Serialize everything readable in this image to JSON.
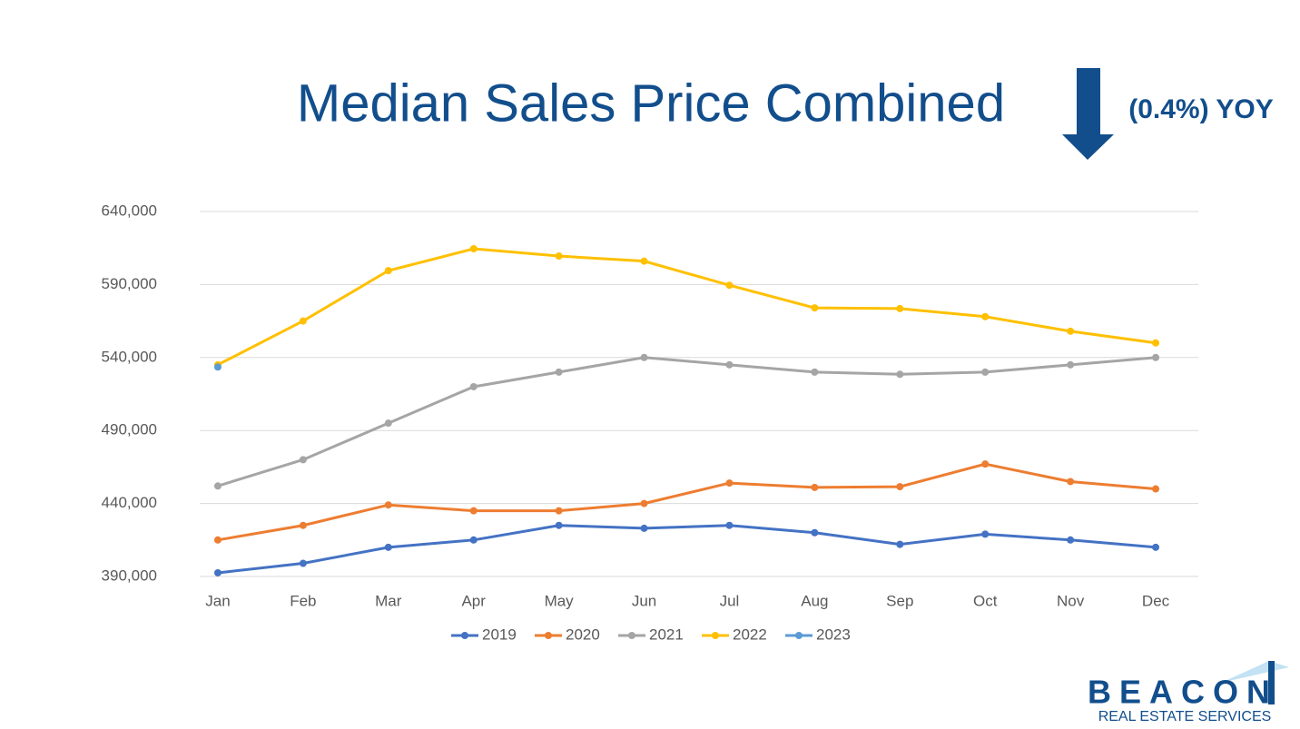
{
  "chart_data": {
    "type": "line",
    "title": "Median Sales Price Combined",
    "annotation": "(0.4%) YOY",
    "categories": [
      "Jan",
      "Feb",
      "Mar",
      "Apr",
      "May",
      "Jun",
      "Jul",
      "Aug",
      "Sep",
      "Oct",
      "Nov",
      "Dec"
    ],
    "series": [
      {
        "name": "2019",
        "color": "#4472c4",
        "values": [
          392500,
          399000,
          410000,
          415000,
          425000,
          423000,
          425000,
          420000,
          412000,
          419000,
          415000,
          410000
        ]
      },
      {
        "name": "2020",
        "color": "#ed7d31",
        "values": [
          415000,
          425000,
          439000,
          435000,
          435000,
          440000,
          454000,
          451000,
          451500,
          467000,
          455000,
          450000
        ]
      },
      {
        "name": "2021",
        "color": "#a5a5a5",
        "values": [
          452000,
          470000,
          495000,
          520000,
          530000,
          540000,
          535000,
          530000,
          528500,
          530000,
          535000,
          540000
        ]
      },
      {
        "name": "2022",
        "color": "#ffc000",
        "values": [
          535000,
          565000,
          599500,
          614500,
          609500,
          606000,
          589500,
          574000,
          573500,
          568000,
          558000,
          550000
        ]
      },
      {
        "name": "2023",
        "color": "#5b9bd5",
        "values": [
          533500,
          null,
          null,
          null,
          null,
          null,
          null,
          null,
          null,
          null,
          null,
          null
        ]
      }
    ],
    "ylim": [
      390000,
      640000
    ],
    "yticks": [
      {
        "value": 390000,
        "label": "390,000"
      },
      {
        "value": 440000,
        "label": "440,000"
      },
      {
        "value": 490000,
        "label": "490,000"
      },
      {
        "value": 540000,
        "label": "540,000"
      },
      {
        "value": 590000,
        "label": "590,000"
      },
      {
        "value": 640000,
        "label": "640,000"
      }
    ],
    "grid": true,
    "legend": "bottom"
  },
  "logo": {
    "name": "BEACON",
    "tagline": "REAL ESTATE SERVICES"
  }
}
